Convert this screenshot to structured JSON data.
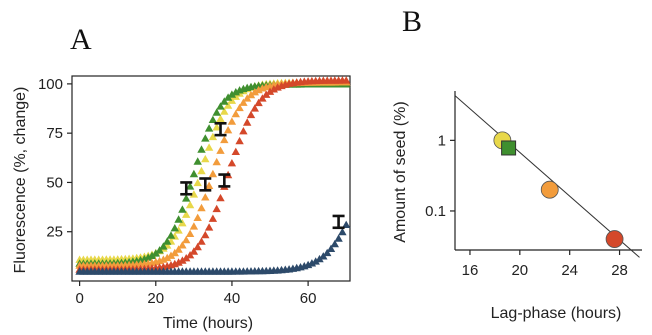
{
  "panel_a": {
    "letter": "A",
    "chart_data": {
      "type": "line",
      "xlabel": "Time (hours)",
      "ylabel": "Fluorescence (%, change)",
      "xlim": [
        -2,
        71
      ],
      "ylim": [
        0,
        104
      ],
      "xticks": [
        0,
        20,
        40,
        60
      ],
      "yticks": [
        25,
        50,
        75,
        100
      ],
      "grid": false,
      "legend": "none",
      "marker": "triangle",
      "series": [
        {
          "color": "#e8d84a",
          "midpoint": 32,
          "rate": 0.27,
          "base": 11,
          "top": 101,
          "errorbar": null
        },
        {
          "color": "#3f8f2f",
          "midpoint": 30,
          "rate": 0.28,
          "base": 9,
          "top": 100,
          "errorbar": {
            "x": 28,
            "y": 47,
            "err": 3
          }
        },
        {
          "color": "#f29c3c",
          "midpoint": 35,
          "rate": 0.26,
          "base": 8,
          "top": 101,
          "errorbar": {
            "x": 33,
            "y": 49,
            "err": 3
          }
        },
        {
          "color": "#d4482a",
          "midpoint": 39,
          "rate": 0.25,
          "base": 6,
          "top": 102,
          "errorbar": {
            "x": 38,
            "y": 51,
            "err": 3
          }
        },
        {
          "color": "#2d4a6a",
          "midpoint": 75,
          "rate": 0.22,
          "base": 5,
          "top": 100,
          "errorbar": {
            "x": 68,
            "y": 30,
            "err": 3
          }
        }
      ],
      "extra_errorbars": [
        {
          "x": 37,
          "y": 77,
          "err": 3
        }
      ]
    }
  },
  "panel_b": {
    "letter": "B",
    "chart_data": {
      "type": "scatter",
      "xlabel": "Lag-phase (hours)",
      "ylabel": "Amount of seed (%)",
      "xlim": [
        14.8,
        29.8
      ],
      "ylim_log": [
        0.028,
        5.0
      ],
      "yscale": "log",
      "xticks": [
        16,
        20,
        24,
        28
      ],
      "yticks": [
        {
          "value": 1,
          "label": "1"
        },
        {
          "value": 0.1,
          "label": "0.1"
        }
      ],
      "grid": false,
      "legend": "none",
      "points": [
        {
          "x": 18.6,
          "y": 1.0,
          "shape": "circle",
          "color": "#e8d84a"
        },
        {
          "x": 19.1,
          "y": 0.78,
          "shape": "square",
          "color": "#3f8f2f"
        },
        {
          "x": 22.4,
          "y": 0.2,
          "shape": "circle",
          "color": "#f29c3c"
        },
        {
          "x": 27.6,
          "y": 0.04,
          "shape": "circle",
          "color": "#d4482a"
        }
      ],
      "fit_line": {
        "x": [
          14.8,
          29.6
        ],
        "y": [
          4.3,
          0.022
        ]
      }
    }
  }
}
